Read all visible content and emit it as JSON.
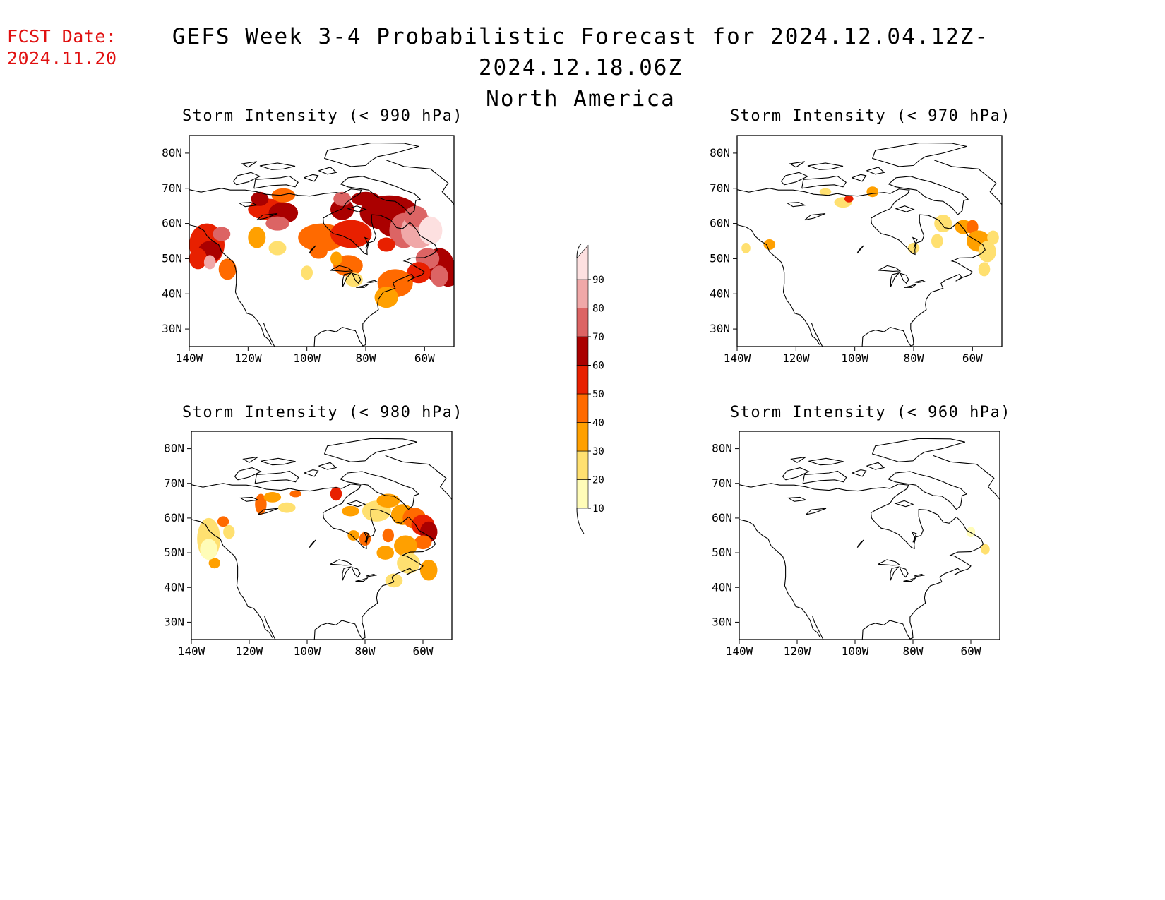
{
  "header": {
    "fcst_label": "FCST Date:",
    "fcst_date": "2024.11.20",
    "title_line1": "GEFS Week 3-4 Probabilistic Forecast for 2024.12.04.12Z-2024.12.18.06Z",
    "title_line2": "North America"
  },
  "axes": {
    "lat_ticks": [
      "80N",
      "70N",
      "60N",
      "50N",
      "40N",
      "30N"
    ],
    "lon_ticks": [
      "140W",
      "120W",
      "100W",
      "80W",
      "60W"
    ]
  },
  "colorbar": {
    "levels": [
      "10",
      "20",
      "30",
      "40",
      "50",
      "60",
      "70",
      "80",
      "90"
    ],
    "colors": [
      "#fffcb8",
      "#ffe070",
      "#ffa000",
      "#ff6a00",
      "#e82000",
      "#aa0000",
      "#dc6464",
      "#f0a8a8",
      "#fde0e0"
    ]
  },
  "panels": [
    {
      "id": "p990",
      "title": "Storm Intensity (< 990 hPa)"
    },
    {
      "id": "p970",
      "title": "Storm Intensity (< 970 hPa)"
    },
    {
      "id": "p980",
      "title": "Storm Intensity (< 980 hPa)"
    },
    {
      "id": "p960",
      "title": "Storm Intensity (< 960 hPa)"
    }
  ]
}
